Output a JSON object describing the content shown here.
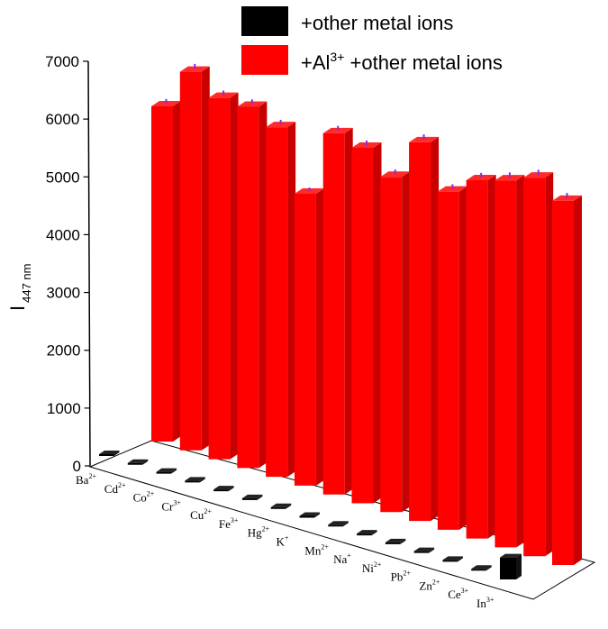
{
  "chart_data": {
    "type": "bar",
    "title": "",
    "xlabel": "",
    "ylabel": "I",
    "ylabel_sub": "447 nm",
    "ylim": [
      0,
      7000
    ],
    "yticks": [
      "0",
      "1000",
      "2000",
      "3000",
      "4000",
      "5000",
      "6000",
      "7000"
    ],
    "categories": [
      {
        "base": "Ba",
        "sup": "2+"
      },
      {
        "base": "Cd",
        "sup": "2+"
      },
      {
        "base": "Co",
        "sup": "2+"
      },
      {
        "base": "Cr",
        "sup": "3+"
      },
      {
        "base": "Cu",
        "sup": "2+"
      },
      {
        "base": "Fe",
        "sup": "3+"
      },
      {
        "base": "Hg",
        "sup": "2+"
      },
      {
        "base": "K",
        "sup": "+"
      },
      {
        "base": "Mn",
        "sup": "2+"
      },
      {
        "base": "Na",
        "sup": "+"
      },
      {
        "base": "Ni",
        "sup": "2+"
      },
      {
        "base": "Pb",
        "sup": "2+"
      },
      {
        "base": "Zn",
        "sup": "2+"
      },
      {
        "base": "Ce",
        "sup": "3+"
      },
      {
        "base": "In",
        "sup": "3+"
      }
    ],
    "series": [
      {
        "legend_base": "+other metal ions",
        "color": "#000000",
        "values": [
          30,
          30,
          30,
          30,
          30,
          30,
          30,
          30,
          30,
          30,
          30,
          30,
          30,
          30,
          380
        ]
      },
      {
        "legend_base": "+Al",
        "legend_sup": "3+",
        "legend_rest": " +other metal ions",
        "color": "#ff0000",
        "values": [
          5800,
          6550,
          6250,
          6250,
          6050,
          5050,
          6250,
          6150,
          5800,
          6550,
          5850,
          6200,
          6350,
          6550,
          6300
        ],
        "errors": [
          80,
          90,
          80,
          80,
          80,
          60,
          80,
          80,
          80,
          90,
          80,
          80,
          90,
          90,
          90
        ]
      }
    ],
    "error_bar_color": "#8a2be2",
    "legend_position": "top-center",
    "grid": false,
    "view": "3d-perspective"
  }
}
